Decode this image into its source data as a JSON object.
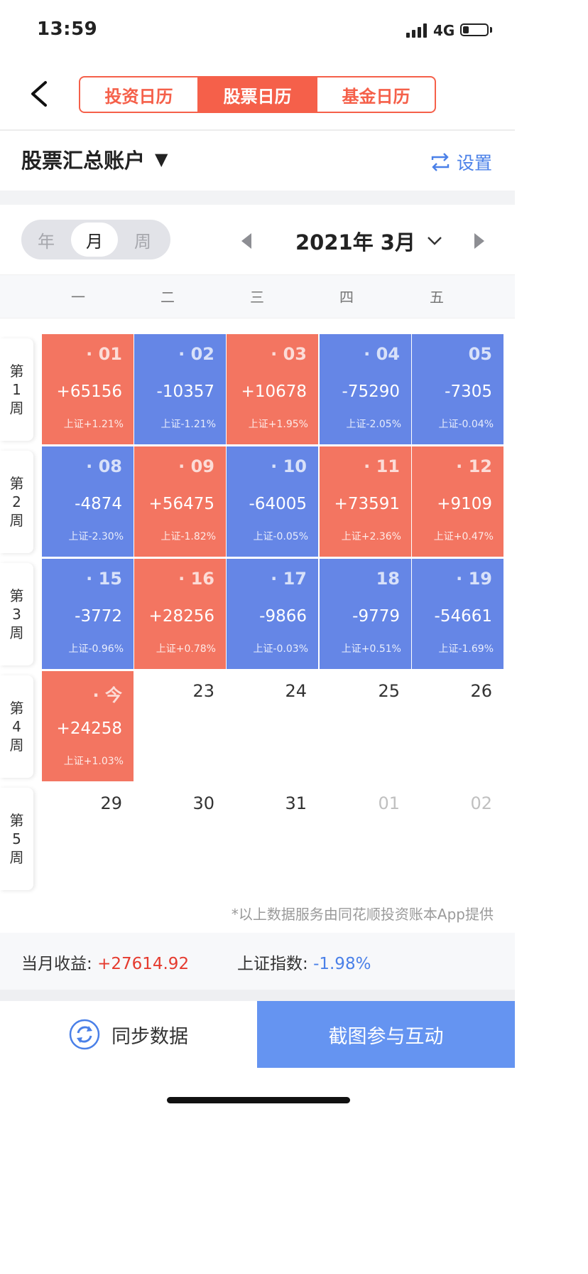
{
  "status_bar": {
    "time": "13:59",
    "network": "4G",
    "battery_level": 0.25
  },
  "header": {
    "tabs": [
      {
        "label": "投资日历",
        "active": false
      },
      {
        "label": "股票日历",
        "active": true
      },
      {
        "label": "基金日历",
        "active": false
      }
    ]
  },
  "account": {
    "name": "股票汇总账户",
    "caret": "▼",
    "settings_label": "设置"
  },
  "period_toggle": {
    "options": [
      "年",
      "月",
      "周"
    ],
    "selected": "月"
  },
  "month": {
    "label": "2021年 3月"
  },
  "weekdays": [
    "一",
    "二",
    "三",
    "四",
    "五"
  ],
  "weeks": [
    {
      "label": [
        "第",
        "1",
        "周"
      ],
      "days": [
        {
          "date": "· 01",
          "pl": "+65156",
          "idx": "上证+1.21%",
          "color": "red"
        },
        {
          "date": "· 02",
          "pl": "-10357",
          "idx": "上证-1.21%",
          "color": "blue"
        },
        {
          "date": "· 03",
          "pl": "+10678",
          "idx": "上证+1.95%",
          "color": "red"
        },
        {
          "date": "· 04",
          "pl": "-75290",
          "idx": "上证-2.05%",
          "color": "blue"
        },
        {
          "date": "05",
          "pl": "-7305",
          "idx": "上证-0.04%",
          "color": "blue"
        }
      ]
    },
    {
      "label": [
        "第",
        "2",
        "周"
      ],
      "days": [
        {
          "date": "· 08",
          "pl": "-4874",
          "idx": "上证-2.30%",
          "color": "blue"
        },
        {
          "date": "· 09",
          "pl": "+56475",
          "idx": "上证-1.82%",
          "color": "red"
        },
        {
          "date": "· 10",
          "pl": "-64005",
          "idx": "上证-0.05%",
          "color": "blue"
        },
        {
          "date": "· 11",
          "pl": "+73591",
          "idx": "上证+2.36%",
          "color": "red"
        },
        {
          "date": "· 12",
          "pl": "+9109",
          "idx": "上证+0.47%",
          "color": "red"
        }
      ]
    },
    {
      "label": [
        "第",
        "3",
        "周"
      ],
      "days": [
        {
          "date": "· 15",
          "pl": "-3772",
          "idx": "上证-0.96%",
          "color": "blue"
        },
        {
          "date": "· 16",
          "pl": "+28256",
          "idx": "上证+0.78%",
          "color": "red"
        },
        {
          "date": "· 17",
          "pl": "-9866",
          "idx": "上证-0.03%",
          "color": "blue"
        },
        {
          "date": "18",
          "pl": "-9779",
          "idx": "上证+0.51%",
          "color": "blue"
        },
        {
          "date": "· 19",
          "pl": "-54661",
          "idx": "上证-1.69%",
          "color": "blue"
        }
      ]
    },
    {
      "label": [
        "第",
        "4",
        "周"
      ],
      "days": [
        {
          "date": "· 今",
          "pl": "+24258",
          "idx": "上证+1.03%",
          "color": "red"
        },
        {
          "date": "23",
          "pl": "",
          "idx": "",
          "color": "none"
        },
        {
          "date": "24",
          "pl": "",
          "idx": "",
          "color": "none"
        },
        {
          "date": "25",
          "pl": "",
          "idx": "",
          "color": "none"
        },
        {
          "date": "26",
          "pl": "",
          "idx": "",
          "color": "none"
        }
      ]
    },
    {
      "label": [
        "第",
        "5",
        "周"
      ],
      "days": [
        {
          "date": "29",
          "pl": "",
          "idx": "",
          "color": "none"
        },
        {
          "date": "30",
          "pl": "",
          "idx": "",
          "color": "none"
        },
        {
          "date": "31",
          "pl": "",
          "idx": "",
          "color": "none"
        },
        {
          "date": "01",
          "pl": "",
          "idx": "",
          "color": "muted"
        },
        {
          "date": "02",
          "pl": "",
          "idx": "",
          "color": "muted"
        }
      ]
    }
  ],
  "footnote": "*以上数据服务由同花顺投资账本App提供",
  "summary": {
    "month_label": "当月收益:",
    "month_value": "+27614.92",
    "index_label": "上证指数:",
    "index_value": "-1.98%"
  },
  "buttons": {
    "sync": "同步数据",
    "share": "截图参与互动"
  },
  "colors": {
    "accent_red": "#f5604a",
    "cell_red": "#f37561",
    "cell_blue": "#6586e6",
    "button_blue": "#6594f1",
    "link_blue": "#4a80e8"
  },
  "icons": [
    "back-chevron-icon",
    "swap-arrows-icon",
    "sync-refresh-icon",
    "signal-icon",
    "battery-icon"
  ]
}
